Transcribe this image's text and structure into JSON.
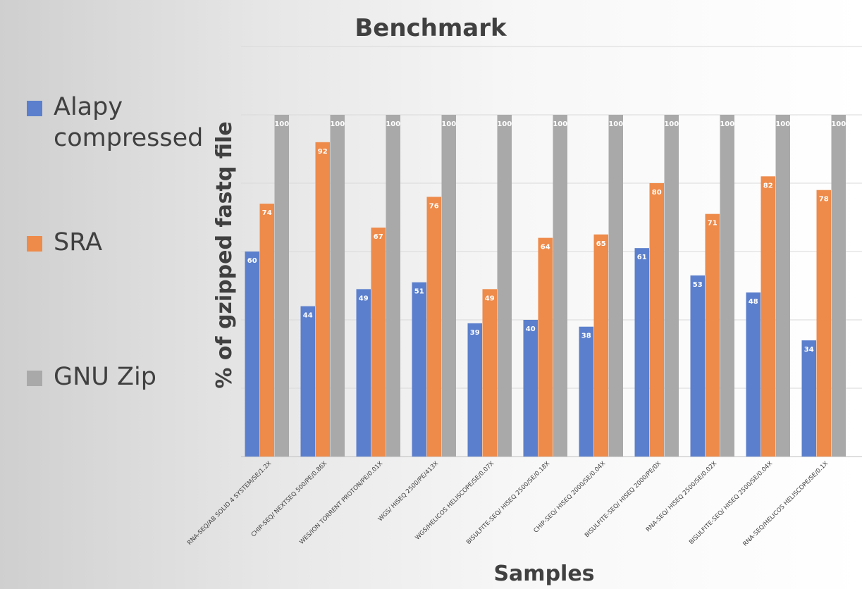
{
  "chart_data": {
    "type": "bar",
    "title": "Benchmark",
    "xlabel": "Samples",
    "ylabel": "% of gzipped fastq file",
    "ylim": [
      0,
      100
    ],
    "grid": true,
    "legend_position": "left",
    "categories": [
      "RNA-SEQ/AB SOLID 4 SYSTEM/SE/1.2X",
      "CHIP-SEQ/ NEXTSEQ 500/PE/0.86X",
      "WES/ION TORRENT PROTON/PE/0.01X",
      "WGS/ HISEQ 2500/PE/413X",
      "WGS/HELICOS HELISCOPE/SE/0.07X",
      "BISULFITE-SEQ/ HISEQ 2500/SE/0.18X",
      "CHIP-SEQ/ HISEQ 2000/SE/0.04X",
      "BISULFITE-SEQ/ HISEQ 2000/PE/0X",
      "RNA-SEQ/ HISEQ 2500/SE/0.02X",
      "BISULFITE-SEQ/ HISEQ 2500/SE/0.04X",
      "RNA-SEQ/HELICOS HELISCOPE/SE/0.1X"
    ],
    "series": [
      {
        "name": "Alapy compressed",
        "color": "#5b7fcc",
        "values": [
          60,
          44,
          49,
          51,
          39,
          40,
          38,
          61,
          53,
          48,
          34
        ]
      },
      {
        "name": "SRA",
        "color": "#ee8a4a",
        "values": [
          74,
          92,
          67,
          76,
          49,
          64,
          65,
          80,
          71,
          82,
          78
        ]
      },
      {
        "name": "GNU Zip",
        "color": "#a9a9a9",
        "values": [
          100,
          100,
          100,
          100,
          100,
          100,
          100,
          100,
          100,
          100,
          100
        ]
      }
    ]
  }
}
